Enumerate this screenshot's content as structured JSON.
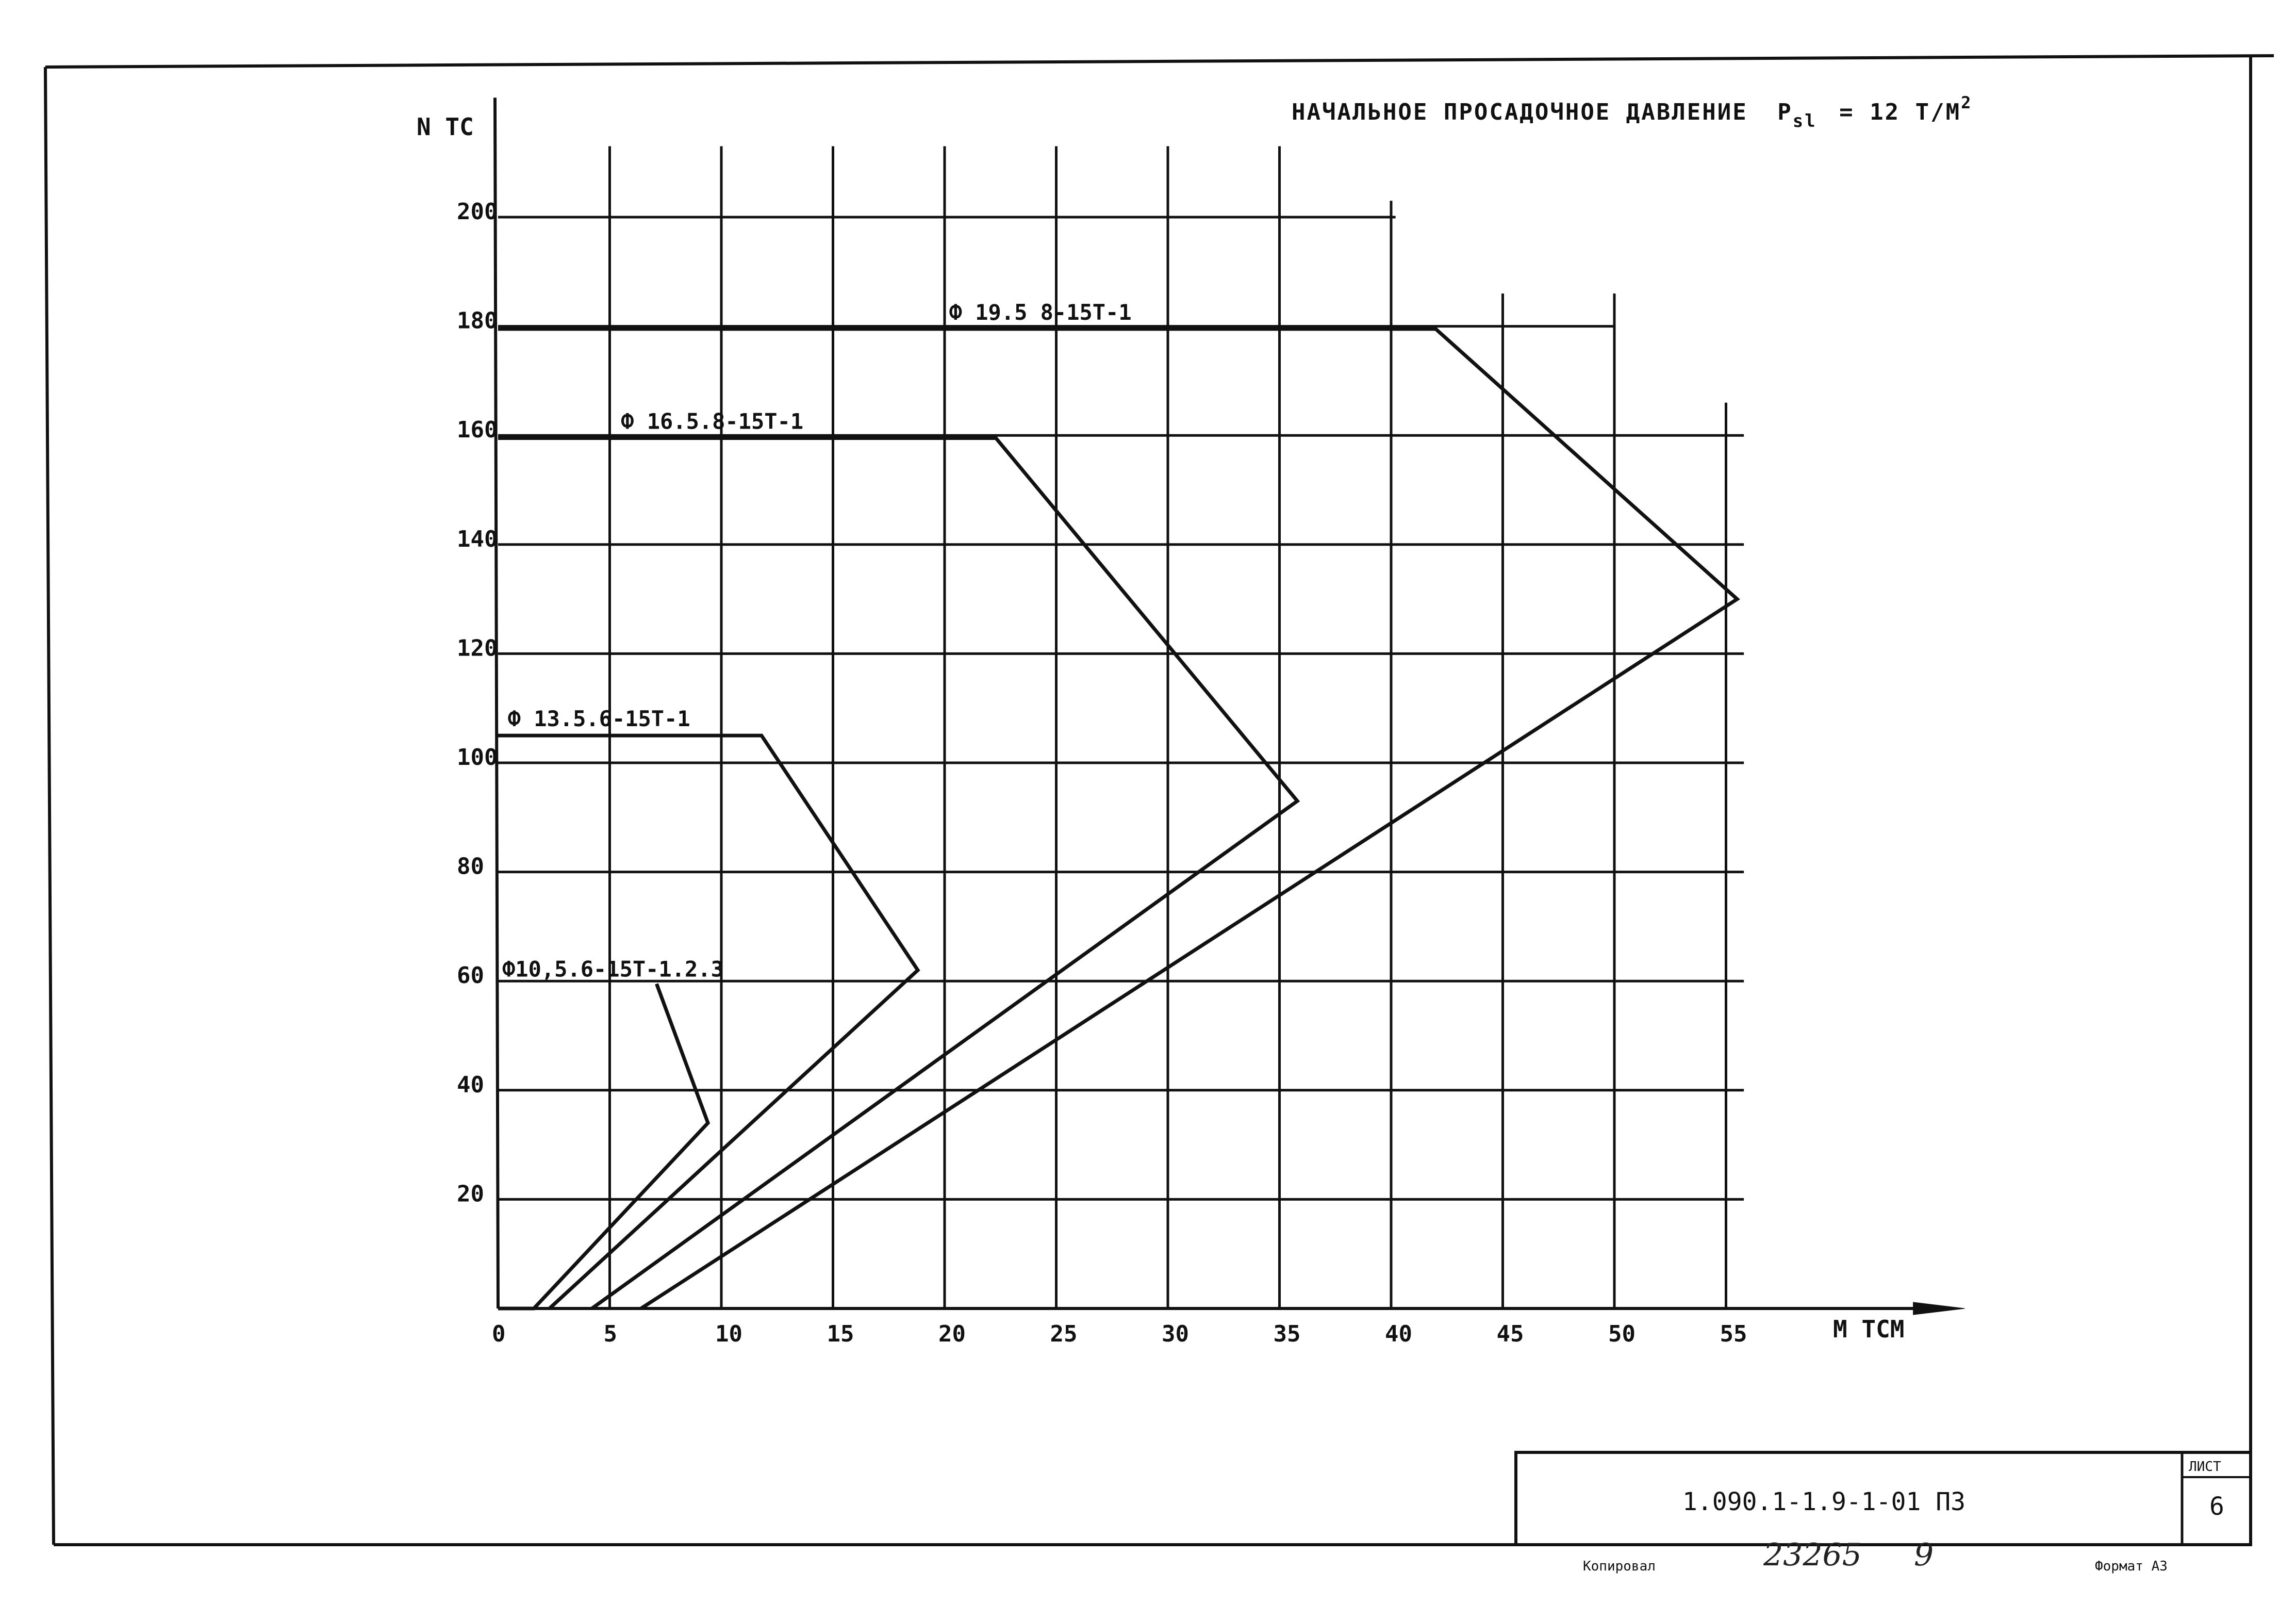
{
  "chart_data": {
    "type": "line",
    "title": "НАЧАЛЬНОЕ ПРОСАДОЧНОЕ ДАВЛЕНИЕ",
    "title_symbol": "P",
    "title_symbol_sub": "sl",
    "title_value": "= 12 Т/М",
    "title_value_sup": "2",
    "xlabel": "М ТСМ",
    "ylabel": "N ТС",
    "xlim": [
      0,
      62
    ],
    "ylim": [
      0,
      220
    ],
    "x_ticks": [
      0,
      5,
      10,
      15,
      20,
      25,
      30,
      35,
      40,
      45,
      50,
      55
    ],
    "y_ticks": [
      20,
      40,
      60,
      80,
      100,
      120,
      140,
      160,
      180,
      200
    ],
    "grid": true,
    "series": [
      {
        "name": "Ф10,5.6-15Т-1.2.3",
        "x": [
          7.1,
          9.4,
          1.6,
          0.0
        ],
        "y": [
          59.5,
          34,
          0,
          0
        ]
      },
      {
        "name": "Ф 13.5.6-15Т-1",
        "x": [
          0.0,
          11.8,
          18.8,
          2.3
        ],
        "y": [
          105,
          105,
          62,
          0
        ]
      },
      {
        "name": "Ф 16.5.8-15Т-1",
        "x": [
          0.0,
          22.3,
          35.8,
          4.2
        ],
        "y": [
          159.5,
          159.5,
          93,
          0
        ]
      },
      {
        "name": "Ф 19.5 8-15Т-1",
        "x": [
          0.0,
          42.0,
          55.5,
          6.4
        ],
        "y": [
          179.5,
          179.5,
          130,
          0
        ]
      }
    ]
  },
  "stamp": {
    "code": "1.090.1-1.9-1-01 ПЗ",
    "sheet_label": "ЛИСТ",
    "sheet_number": "6"
  },
  "footer": {
    "copied_label": "Копировал",
    "number": "23265",
    "number_suffix": "9",
    "format_label": "Формат А3"
  }
}
